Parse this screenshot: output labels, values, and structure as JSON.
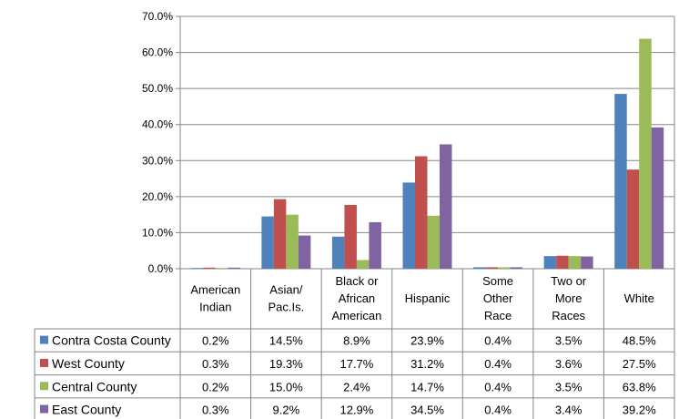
{
  "chart_data": {
    "type": "bar",
    "title": "",
    "xlabel": "",
    "ylabel": "",
    "ylim": [
      0,
      70
    ],
    "y_tick_labels": [
      "0.0%",
      "10.0%",
      "20.0%",
      "30.0%",
      "40.0%",
      "50.0%",
      "60.0%",
      "70.0%"
    ],
    "y_ticks": [
      0,
      10,
      20,
      30,
      40,
      50,
      60,
      70
    ],
    "grid": true,
    "legend": "left data table",
    "categories": [
      [
        "American",
        "Indian"
      ],
      [
        "Asian/",
        "Pac.Is."
      ],
      [
        "Black or",
        "African",
        "American"
      ],
      [
        "Hispanic"
      ],
      [
        "Some",
        "Other",
        "Race"
      ],
      [
        "Two or",
        "More",
        "Races"
      ],
      [
        "White"
      ]
    ],
    "series": [
      {
        "name": "Contra Costa County",
        "color": "#4F81BD",
        "values": [
          0.2,
          14.5,
          8.9,
          23.9,
          0.4,
          3.5,
          48.5
        ],
        "labels": [
          "0.2%",
          "14.5%",
          "8.9%",
          "23.9%",
          "0.4%",
          "3.5%",
          "48.5%"
        ]
      },
      {
        "name": "West County",
        "color": "#C0504D",
        "values": [
          0.3,
          19.3,
          17.7,
          31.2,
          0.4,
          3.6,
          27.5
        ],
        "labels": [
          "0.3%",
          "19.3%",
          "17.7%",
          "31.2%",
          "0.4%",
          "3.6%",
          "27.5%"
        ]
      },
      {
        "name": "Central County",
        "color": "#9BBB59",
        "values": [
          0.2,
          15.0,
          2.4,
          14.7,
          0.4,
          3.5,
          63.8
        ],
        "labels": [
          "0.2%",
          "15.0%",
          "2.4%",
          "14.7%",
          "0.4%",
          "3.5%",
          "63.8%"
        ]
      },
      {
        "name": "East County",
        "color": "#8064A2",
        "values": [
          0.3,
          9.2,
          12.9,
          34.5,
          0.4,
          3.4,
          39.2
        ],
        "labels": [
          "0.3%",
          "9.2%",
          "12.9%",
          "34.5%",
          "0.4%",
          "3.4%",
          "39.2%"
        ]
      }
    ]
  }
}
